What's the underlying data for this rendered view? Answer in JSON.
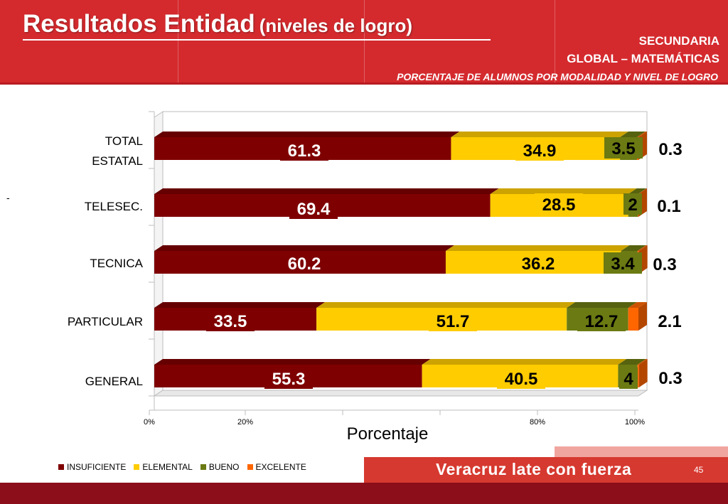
{
  "header": {
    "title": "Resultados Entidad",
    "title_sub": "(niveles de logro)",
    "level": "SECUNDARIA",
    "subject": "GLOBAL – MATEMÁTICAS",
    "caption": "PORCENTAJE DE ALUMNOS POR MODALIDAD Y NIVEL DE LOGRO"
  },
  "dash": "-",
  "chart_data": {
    "type": "bar",
    "orientation": "horizontal",
    "stacked": true,
    "categories": [
      "TOTAL ESTATAL",
      "TELESEC.",
      "TECNICA",
      "PARTICULAR",
      "GENERAL"
    ],
    "category_lines": [
      [
        "TOTAL",
        "ESTATAL"
      ],
      [
        "TELESEC."
      ],
      [
        "TECNICA"
      ],
      [
        "PARTICULAR"
      ],
      [
        "GENERAL"
      ]
    ],
    "series": [
      {
        "name": "INSUFICIENTE",
        "values": [
          61.3,
          69.4,
          60.2,
          33.5,
          55.3
        ],
        "labels": [
          "61.3",
          "69.4",
          "60.2",
          "33.5",
          "55.3"
        ]
      },
      {
        "name": "ELEMENTAL",
        "values": [
          34.9,
          28.5,
          36.2,
          51.7,
          40.5
        ],
        "labels": [
          "34.9",
          "28.5",
          "36.2",
          "51.7",
          "40.5"
        ]
      },
      {
        "name": "BUENO",
        "values": [
          3.5,
          2,
          3.4,
          12.7,
          4
        ],
        "labels": [
          "3.5",
          "2",
          "3.4",
          "12.7",
          "4"
        ]
      },
      {
        "name": "EXCELENTE",
        "values": [
          0.3,
          0.1,
          0.3,
          2.1,
          0.3
        ],
        "labels": [
          "0.3",
          "0.1",
          "0.3",
          "2.1",
          "0.3"
        ]
      }
    ],
    "colors": [
      "#7f0000",
      "#ffcc00",
      "#6b7a12",
      "#ff6600"
    ],
    "xlabel": "Porcentaje",
    "xlim": [
      0,
      100
    ],
    "xticks": [
      "0%",
      "20%",
      "",
      "",
      "80%",
      "100%"
    ],
    "legend_position": "bottom-left",
    "grid": false
  },
  "footer": {
    "slogan": "Veracruz late con fuerza",
    "page": "45"
  }
}
